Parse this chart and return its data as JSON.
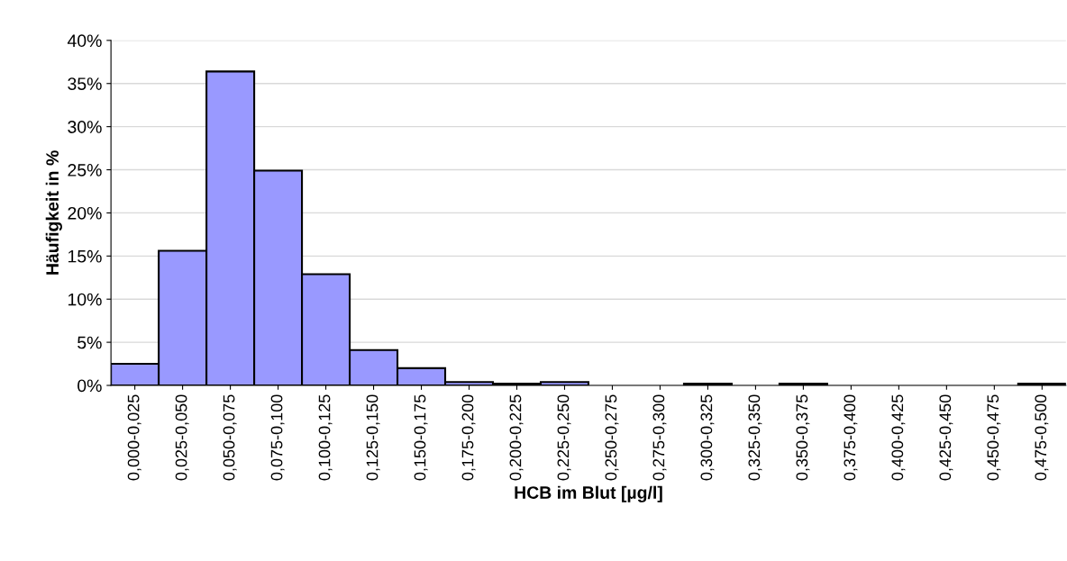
{
  "chart_data": {
    "type": "bar",
    "xlabel": "HCB im Blut [µg/l]",
    "ylabel": "Häufigkeit in %",
    "categories": [
      "0,000-0,025",
      "0,025-0,050",
      "0,050-0,075",
      "0,075-0,100",
      "0,100-0,125",
      "0,125-0,150",
      "0,150-0,175",
      "0,175-0,200",
      "0,200-0,225",
      "0,225-0,250",
      "0,250-0,275",
      "0,275-0,300",
      "0,300-0,325",
      "0,325-0,350",
      "0,350-0,375",
      "0,375-0,400",
      "0,400-0,425",
      "0,425-0,450",
      "0,450-0,475",
      "0,475-0,500"
    ],
    "values": [
      2.5,
      15.6,
      36.4,
      24.9,
      12.9,
      4.1,
      2.0,
      0.4,
      0.2,
      0.4,
      0,
      0,
      0.2,
      0,
      0.2,
      0,
      0,
      0,
      0,
      0.2
    ],
    "color": "#9999ff",
    "ylim": [
      0,
      40
    ],
    "yticks": [
      {
        "value": 0,
        "label": "0%"
      },
      {
        "value": 5,
        "label": "5%"
      },
      {
        "value": 10,
        "label": "10%"
      },
      {
        "value": 15,
        "label": "15%"
      },
      {
        "value": 20,
        "label": "20%"
      },
      {
        "value": 25,
        "label": "25%"
      },
      {
        "value": 30,
        "label": "30%"
      },
      {
        "value": 35,
        "label": "35%"
      },
      {
        "value": 40,
        "label": "40%"
      }
    ],
    "grid": "y"
  }
}
